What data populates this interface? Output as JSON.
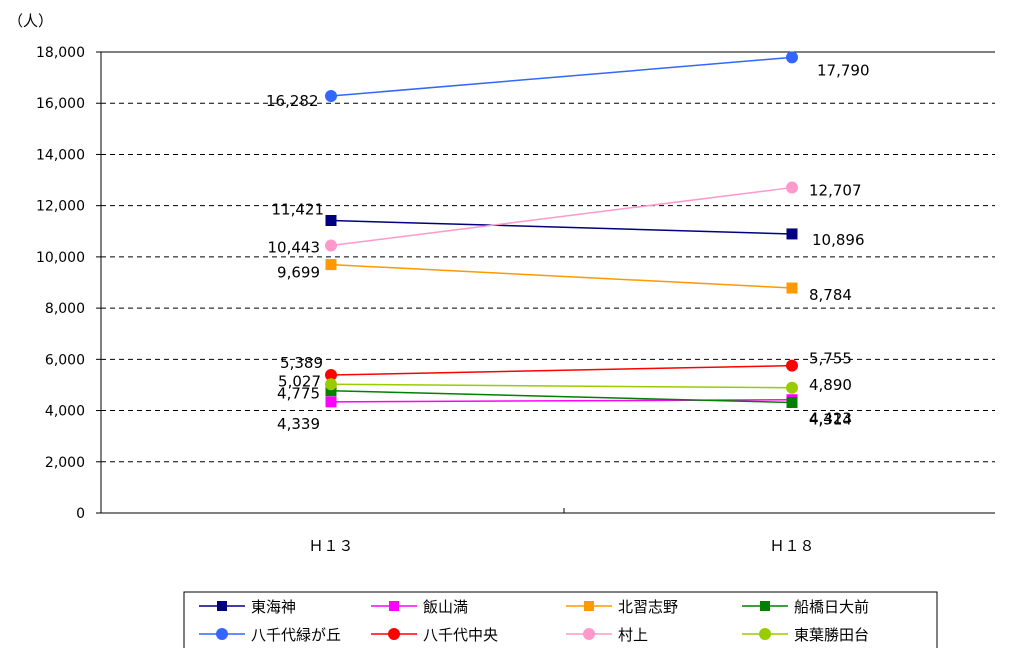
{
  "chart_data": {
    "type": "line",
    "ylabel": "（人）",
    "categories": [
      "Ｈ１３",
      "Ｈ１８"
    ],
    "ylim": [
      0,
      18000
    ],
    "yticks": [
      0,
      2000,
      4000,
      6000,
      8000,
      10000,
      12000,
      14000,
      16000,
      18000
    ],
    "ytick_labels": [
      "0",
      "2,000",
      "4,000",
      "6,000",
      "8,000",
      "10,000",
      "12,000",
      "14,000",
      "16,000",
      "18,000"
    ],
    "grid": true,
    "legend_placement": "bottom",
    "series": [
      {
        "name": "東海神",
        "values": [
          11421,
          10896
        ],
        "labels": [
          "11,421",
          "10,896"
        ],
        "color": "#000080",
        "marker": "square"
      },
      {
        "name": "飯山満",
        "values": [
          4339,
          4423
        ],
        "labels": [
          "4,339",
          "4,423"
        ],
        "color": "#ff00ff",
        "marker": "square"
      },
      {
        "name": "北習志野",
        "values": [
          9699,
          8784
        ],
        "labels": [
          "9,699",
          "8,784"
        ],
        "color": "#ff9900",
        "marker": "square"
      },
      {
        "name": "船橋日大前",
        "values": [
          4775,
          4314
        ],
        "labels": [
          "4,775",
          "4,314"
        ],
        "color": "#008000",
        "marker": "square"
      },
      {
        "name": "八千代緑が丘",
        "values": [
          16282,
          17790
        ],
        "labels": [
          "16,282",
          "17,790"
        ],
        "color": "#3366ff",
        "marker": "circle"
      },
      {
        "name": "八千代中央",
        "values": [
          5389,
          5755
        ],
        "labels": [
          "5,389",
          "5,755"
        ],
        "color": "#ff0000",
        "marker": "circle"
      },
      {
        "name": "村上",
        "values": [
          10443,
          12707
        ],
        "labels": [
          "10,443",
          "12,707"
        ],
        "color": "#ff99cc",
        "marker": "circle"
      },
      {
        "name": "東葉勝田台",
        "values": [
          5027,
          4890
        ],
        "labels": [
          "5,027",
          "4,890"
        ],
        "color": "#99cc00",
        "marker": "circle"
      }
    ]
  }
}
